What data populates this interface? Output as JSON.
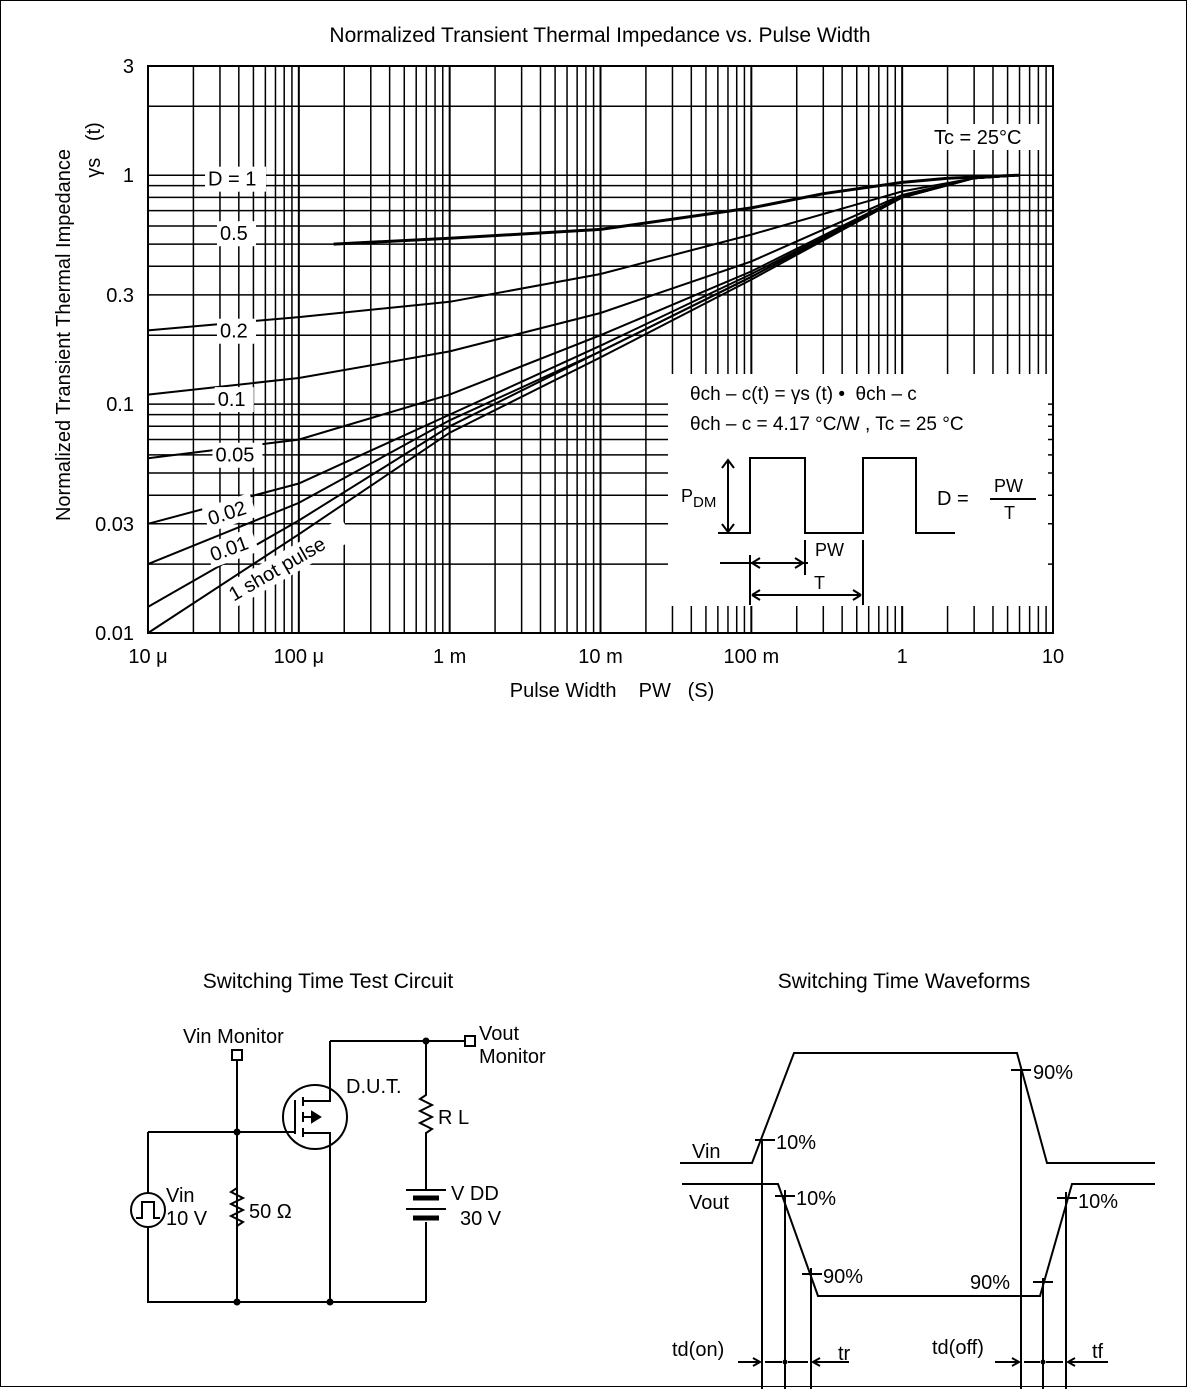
{
  "chart_data": {
    "type": "line",
    "title": "Normalized Transient Thermal Impedance vs. Pulse Width",
    "xlabel": "Pulse Width    PW   (S)",
    "ylabel": "Normalized Transient Thermal Impedance",
    "ylabel2": "γs   (t)",
    "x_scale": "log",
    "y_scale": "log",
    "xlim": [
      1e-05,
      10
    ],
    "ylim": [
      0.01,
      3
    ],
    "grid": true,
    "x_tick_values": [
      1e-05,
      0.0001,
      0.001,
      0.01,
      0.1,
      1,
      10
    ],
    "x_tick_labels": [
      "10 μ",
      "100 μ",
      "1 m",
      "10 m",
      "100 m",
      "1",
      "10"
    ],
    "y_tick_values": [
      0.01,
      0.03,
      0.1,
      0.3,
      1,
      3
    ],
    "y_tick_labels": [
      "0.01",
      "0.03",
      "0.1",
      "0.3",
      "1",
      "3"
    ],
    "condition_label": "Tc = 25°C",
    "series": [
      {
        "name": "D = 1",
        "x": [
          0.00017,
          0.001,
          0.01,
          0.1,
          0.3,
          1,
          2,
          6
        ],
        "y": [
          0.5,
          0.53,
          0.58,
          0.72,
          0.83,
          0.93,
          0.97,
          1.0
        ]
      },
      {
        "name": "0.5",
        "x": [
          1e-05,
          0.0001,
          0.001,
          0.01,
          0.1,
          1,
          3,
          6
        ],
        "y": [
          0.21,
          0.24,
          0.28,
          0.37,
          0.55,
          0.85,
          0.97,
          1.0
        ]
      },
      {
        "name": "0.2",
        "x": [
          1e-05,
          0.0001,
          0.001,
          0.01,
          0.1,
          1,
          3,
          6
        ],
        "y": [
          0.11,
          0.13,
          0.17,
          0.25,
          0.42,
          0.82,
          0.97,
          1.0
        ]
      },
      {
        "name": "0.1",
        "x": [
          1e-05,
          0.0001,
          0.001,
          0.01,
          0.1,
          1,
          3,
          6
        ],
        "y": [
          0.058,
          0.07,
          0.11,
          0.2,
          0.38,
          0.81,
          0.97,
          1.0
        ]
      },
      {
        "name": "0.05",
        "x": [
          1e-05,
          0.0001,
          0.001,
          0.01,
          0.1,
          1,
          3,
          6
        ],
        "y": [
          0.03,
          0.045,
          0.09,
          0.18,
          0.37,
          0.8,
          0.97,
          1.0
        ]
      },
      {
        "name": "0.02",
        "x": [
          1e-05,
          0.0001,
          0.001,
          0.01,
          0.1,
          1,
          3,
          6
        ],
        "y": [
          0.02,
          0.037,
          0.085,
          0.17,
          0.36,
          0.8,
          0.97,
          1.0
        ]
      },
      {
        "name": "0.01",
        "x": [
          1e-05,
          0.0001,
          0.001,
          0.01,
          0.1,
          1,
          3,
          6
        ],
        "y": [
          0.013,
          0.031,
          0.08,
          0.17,
          0.36,
          0.8,
          0.97,
          1.0
        ]
      },
      {
        "name": "1 shot pulse",
        "x": [
          1e-05,
          0.0001,
          0.001,
          0.01,
          0.1,
          1,
          3,
          6
        ],
        "y": [
          0.01,
          0.027,
          0.075,
          0.16,
          0.35,
          0.8,
          0.97,
          1.0
        ]
      }
    ],
    "formula_line1": "θch – c(t) = γs (t) •  θch – c",
    "formula_line2": "θch – c = 4.17 °C/W , Tc = 25 °C",
    "inset_pdm": "P",
    "inset_pdm_sub": "DM",
    "inset_pw": "PW",
    "inset_t": "T",
    "inset_d": "D =",
    "inset_d_num": "PW",
    "inset_d_den": "T"
  },
  "circuit": {
    "title": "Switching Time Test Circuit",
    "vin_monitor": "Vin Monitor",
    "vout_monitor_1": "Vout",
    "vout_monitor_2": "Monitor",
    "dut": "D.U.T.",
    "rl": "R L",
    "vin_1": "Vin",
    "vin_2": "10 V",
    "r50": "50 Ω",
    "vdd": "V DD",
    "vdd_value": "30 V"
  },
  "waveforms": {
    "title": "Switching Time Waveforms",
    "vin": "Vin",
    "vout": "Vout",
    "p90_top": "90%",
    "p10_vin": "10%",
    "p10_vout_left": "10%",
    "p90_vout_left": "90%",
    "p90_vout_right": "90%",
    "p10_vout_right": "10%",
    "td_on": "td(on)",
    "tr": "tr",
    "td_off": "td(off)",
    "tf": "tf"
  }
}
